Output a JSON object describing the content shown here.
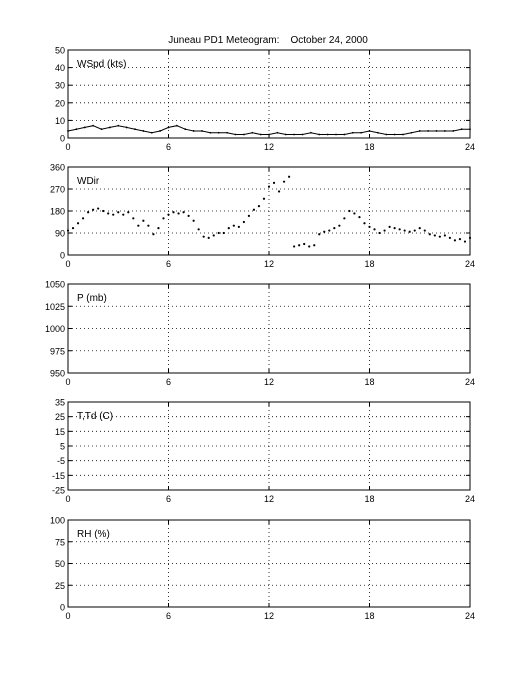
{
  "title": "Juneau PD1 Meteogram:    October 24, 2000",
  "x_ticks": [
    0,
    6,
    12,
    18,
    24
  ],
  "panels": [
    {
      "label": "WSpd (kts)",
      "yticks": [
        0,
        10,
        20,
        30,
        40,
        50
      ],
      "ylim": [
        0,
        50
      ],
      "series_kind": "line",
      "points": [
        [
          0,
          4
        ],
        [
          0.5,
          5
        ],
        [
          1,
          6
        ],
        [
          1.5,
          7
        ],
        [
          2,
          5
        ],
        [
          2.5,
          6
        ],
        [
          3,
          7
        ],
        [
          3.5,
          6
        ],
        [
          4,
          5
        ],
        [
          4.5,
          4
        ],
        [
          5,
          3
        ],
        [
          5.5,
          4
        ],
        [
          6,
          6
        ],
        [
          6.5,
          7
        ],
        [
          7,
          5
        ],
        [
          7.5,
          4
        ],
        [
          8,
          4
        ],
        [
          8.5,
          3
        ],
        [
          9,
          3
        ],
        [
          9.5,
          3
        ],
        [
          10,
          2
        ],
        [
          10.5,
          2
        ],
        [
          11,
          3
        ],
        [
          11.5,
          2
        ],
        [
          12,
          2
        ],
        [
          12.5,
          3
        ],
        [
          13,
          2
        ],
        [
          13.5,
          2
        ],
        [
          14,
          2
        ],
        [
          14.5,
          3
        ],
        [
          15,
          2
        ],
        [
          15.5,
          2
        ],
        [
          16,
          2
        ],
        [
          16.5,
          2
        ],
        [
          17,
          3
        ],
        [
          17.5,
          3
        ],
        [
          18,
          4
        ],
        [
          18.5,
          3
        ],
        [
          19,
          2
        ],
        [
          19.5,
          2
        ],
        [
          20,
          2
        ],
        [
          20.5,
          3
        ],
        [
          21,
          4
        ],
        [
          21.5,
          4
        ],
        [
          22,
          4
        ],
        [
          22.5,
          4
        ],
        [
          23,
          4
        ],
        [
          23.5,
          5
        ],
        [
          24,
          5
        ]
      ]
    },
    {
      "label": "WDir",
      "yticks": [
        0,
        90,
        180,
        270,
        360
      ],
      "ylim": [
        0,
        360
      ],
      "series_kind": "scatter",
      "points": [
        [
          0,
          100
        ],
        [
          0.3,
          110
        ],
        [
          0.6,
          130
        ],
        [
          0.9,
          150
        ],
        [
          1.2,
          175
        ],
        [
          1.5,
          185
        ],
        [
          1.8,
          190
        ],
        [
          2.1,
          180
        ],
        [
          2.4,
          170
        ],
        [
          2.7,
          165
        ],
        [
          3,
          175
        ],
        [
          3.3,
          165
        ],
        [
          3.6,
          175
        ],
        [
          3.9,
          150
        ],
        [
          4.2,
          120
        ],
        [
          4.5,
          140
        ],
        [
          4.8,
          120
        ],
        [
          5.1,
          85
        ],
        [
          5.4,
          110
        ],
        [
          5.7,
          150
        ],
        [
          6,
          165
        ],
        [
          6.3,
          175
        ],
        [
          6.6,
          170
        ],
        [
          6.9,
          175
        ],
        [
          7.2,
          160
        ],
        [
          7.5,
          140
        ],
        [
          7.8,
          105
        ],
        [
          8.1,
          75
        ],
        [
          8.4,
          70
        ],
        [
          8.7,
          80
        ],
        [
          9,
          90
        ],
        [
          9.3,
          90
        ],
        [
          9.6,
          110
        ],
        [
          9.9,
          120
        ],
        [
          10.2,
          115
        ],
        [
          10.5,
          135
        ],
        [
          10.8,
          160
        ],
        [
          11.1,
          185
        ],
        [
          11.4,
          200
        ],
        [
          11.7,
          230
        ],
        [
          12,
          280
        ],
        [
          12.3,
          295
        ],
        [
          12.6,
          260
        ],
        [
          12.9,
          300
        ],
        [
          13.2,
          320
        ],
        [
          13.5,
          35
        ],
        [
          13.8,
          40
        ],
        [
          14.1,
          45
        ],
        [
          14.4,
          35
        ],
        [
          14.7,
          40
        ],
        [
          15,
          85
        ],
        [
          15.3,
          95
        ],
        [
          15.6,
          100
        ],
        [
          15.9,
          110
        ],
        [
          16.2,
          120
        ],
        [
          16.5,
          150
        ],
        [
          16.8,
          180
        ],
        [
          17.1,
          170
        ],
        [
          17.4,
          155
        ],
        [
          17.7,
          130
        ],
        [
          18,
          115
        ],
        [
          18.3,
          105
        ],
        [
          18.6,
          90
        ],
        [
          18.9,
          100
        ],
        [
          19.2,
          115
        ],
        [
          19.5,
          110
        ],
        [
          19.8,
          105
        ],
        [
          20.1,
          100
        ],
        [
          20.4,
          95
        ],
        [
          20.7,
          100
        ],
        [
          21,
          110
        ],
        [
          21.3,
          100
        ],
        [
          21.6,
          85
        ],
        [
          21.9,
          80
        ],
        [
          22.2,
          75
        ],
        [
          22.5,
          80
        ],
        [
          22.8,
          70
        ],
        [
          23.1,
          60
        ],
        [
          23.4,
          65
        ],
        [
          23.7,
          55
        ],
        [
          24,
          70
        ]
      ]
    },
    {
      "label": "P (mb)",
      "yticks": [
        950,
        975,
        1000,
        1025,
        1050
      ],
      "ylim": [
        950,
        1050
      ],
      "series_kind": "none",
      "points": []
    },
    {
      "label": "T,Td (C)",
      "yticks": [
        -25,
        -15,
        -5,
        5,
        15,
        25,
        35
      ],
      "ylim": [
        -25,
        35
      ],
      "series_kind": "none",
      "points": []
    },
    {
      "label": "RH (%)",
      "yticks": [
        0,
        25,
        50,
        75,
        100
      ],
      "ylim": [
        0,
        100
      ],
      "series_kind": "none",
      "points": []
    }
  ],
  "chart_data": [
    {
      "type": "line",
      "title": "Juneau PD1 Meteogram:    October 24, 2000",
      "ylabel": "WSpd (kts)",
      "xlim": [
        0,
        24
      ],
      "ylim": [
        0,
        50
      ],
      "x_ticks": [
        0,
        6,
        12,
        18,
        24
      ],
      "y_ticks": [
        0,
        10,
        20,
        30,
        40,
        50
      ],
      "grid": true,
      "series": [
        {
          "x": [
            0,
            0.5,
            1,
            1.5,
            2,
            2.5,
            3,
            3.5,
            4,
            4.5,
            5,
            5.5,
            6,
            6.5,
            7,
            7.5,
            8,
            8.5,
            9,
            9.5,
            10,
            10.5,
            11,
            11.5,
            12,
            12.5,
            13,
            13.5,
            14,
            14.5,
            15,
            15.5,
            16,
            16.5,
            17,
            17.5,
            18,
            18.5,
            19,
            19.5,
            20,
            20.5,
            21,
            21.5,
            22,
            22.5,
            23,
            23.5,
            24
          ],
          "y": [
            4,
            5,
            6,
            7,
            5,
            6,
            7,
            6,
            5,
            4,
            3,
            4,
            6,
            7,
            5,
            4,
            4,
            3,
            3,
            3,
            2,
            2,
            3,
            2,
            2,
            3,
            2,
            2,
            2,
            3,
            2,
            2,
            2,
            2,
            3,
            3,
            4,
            3,
            2,
            2,
            2,
            3,
            4,
            4,
            4,
            4,
            4,
            5,
            5
          ]
        }
      ]
    },
    {
      "type": "scatter",
      "ylabel": "WDir",
      "xlim": [
        0,
        24
      ],
      "ylim": [
        0,
        360
      ],
      "x_ticks": [
        0,
        6,
        12,
        18,
        24
      ],
      "y_ticks": [
        0,
        90,
        180,
        270,
        360
      ],
      "grid": true,
      "series": [
        {
          "x": [
            0,
            0.3,
            0.6,
            0.9,
            1.2,
            1.5,
            1.8,
            2.1,
            2.4,
            2.7,
            3,
            3.3,
            3.6,
            3.9,
            4.2,
            4.5,
            4.8,
            5.1,
            5.4,
            5.7,
            6,
            6.3,
            6.6,
            6.9,
            7.2,
            7.5,
            7.8,
            8.1,
            8.4,
            8.7,
            9,
            9.3,
            9.6,
            9.9,
            10.2,
            10.5,
            10.8,
            11.1,
            11.4,
            11.7,
            12,
            12.3,
            12.6,
            12.9,
            13.2,
            13.5,
            13.8,
            14.1,
            14.4,
            14.7,
            15,
            15.3,
            15.6,
            15.9,
            16.2,
            16.5,
            16.8,
            17.1,
            17.4,
            17.7,
            18,
            18.3,
            18.6,
            18.9,
            19.2,
            19.5,
            19.8,
            20.1,
            20.4,
            20.7,
            21,
            21.3,
            21.6,
            21.9,
            22.2,
            22.5,
            22.8,
            23.1,
            23.4,
            23.7,
            24
          ],
          "y": [
            100,
            110,
            130,
            150,
            175,
            185,
            190,
            180,
            170,
            165,
            175,
            165,
            175,
            150,
            120,
            140,
            120,
            85,
            110,
            150,
            165,
            175,
            170,
            175,
            160,
            140,
            105,
            75,
            70,
            80,
            90,
            90,
            110,
            120,
            115,
            135,
            160,
            185,
            200,
            230,
            280,
            295,
            260,
            300,
            320,
            35,
            40,
            45,
            35,
            40,
            85,
            95,
            100,
            110,
            120,
            150,
            180,
            170,
            155,
            130,
            115,
            105,
            90,
            100,
            115,
            110,
            105,
            100,
            95,
            100,
            110,
            100,
            85,
            80,
            75,
            80,
            70,
            60,
            65,
            55,
            70
          ]
        }
      ]
    },
    {
      "type": "line",
      "ylabel": "P (mb)",
      "xlim": [
        0,
        24
      ],
      "ylim": [
        950,
        1050
      ],
      "x_ticks": [
        0,
        6,
        12,
        18,
        24
      ],
      "y_ticks": [
        950,
        975,
        1000,
        1025,
        1050
      ],
      "grid": true,
      "series": []
    },
    {
      "type": "line",
      "ylabel": "T,Td (C)",
      "xlim": [
        0,
        24
      ],
      "ylim": [
        -25,
        35
      ],
      "x_ticks": [
        0,
        6,
        12,
        18,
        24
      ],
      "y_ticks": [
        -25,
        -15,
        -5,
        5,
        15,
        25,
        35
      ],
      "grid": true,
      "series": []
    },
    {
      "type": "line",
      "ylabel": "RH (%)",
      "xlim": [
        0,
        24
      ],
      "ylim": [
        0,
        100
      ],
      "x_ticks": [
        0,
        6,
        12,
        18,
        24
      ],
      "y_ticks": [
        0,
        25,
        50,
        75,
        100
      ],
      "grid": true,
      "series": []
    }
  ]
}
